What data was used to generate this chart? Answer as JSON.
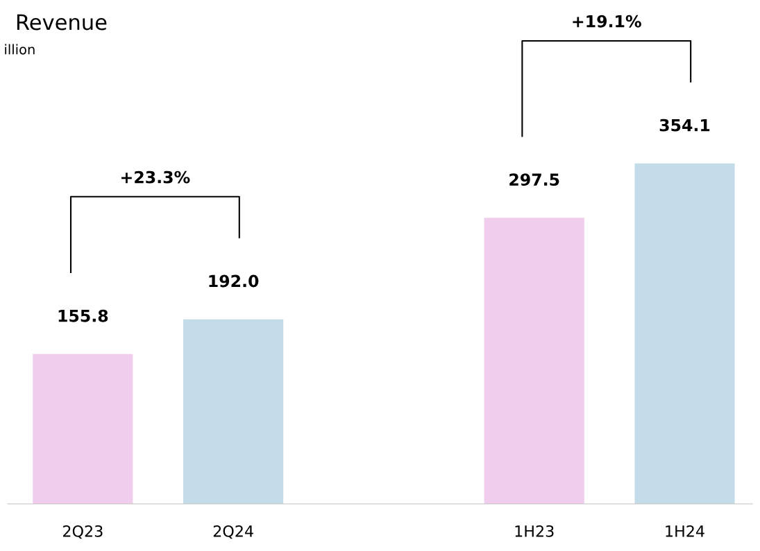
{
  "chart_data": {
    "type": "bar",
    "title": "Revenue",
    "subtitle": "illion",
    "categories": [
      "2Q23",
      "2Q24",
      null,
      "1H23",
      "1H24"
    ],
    "values": [
      155.8,
      192.0,
      null,
      297.5,
      354.1
    ],
    "value_labels": [
      "155.8",
      "192.0",
      null,
      "297.5",
      "354.1"
    ],
    "colors": [
      "#f0cdec",
      "#c4dce9",
      "#ffffff",
      "#f0cdec",
      "#c4dce9"
    ],
    "annotations": [
      "+23.3%",
      "+19.1%"
    ]
  }
}
